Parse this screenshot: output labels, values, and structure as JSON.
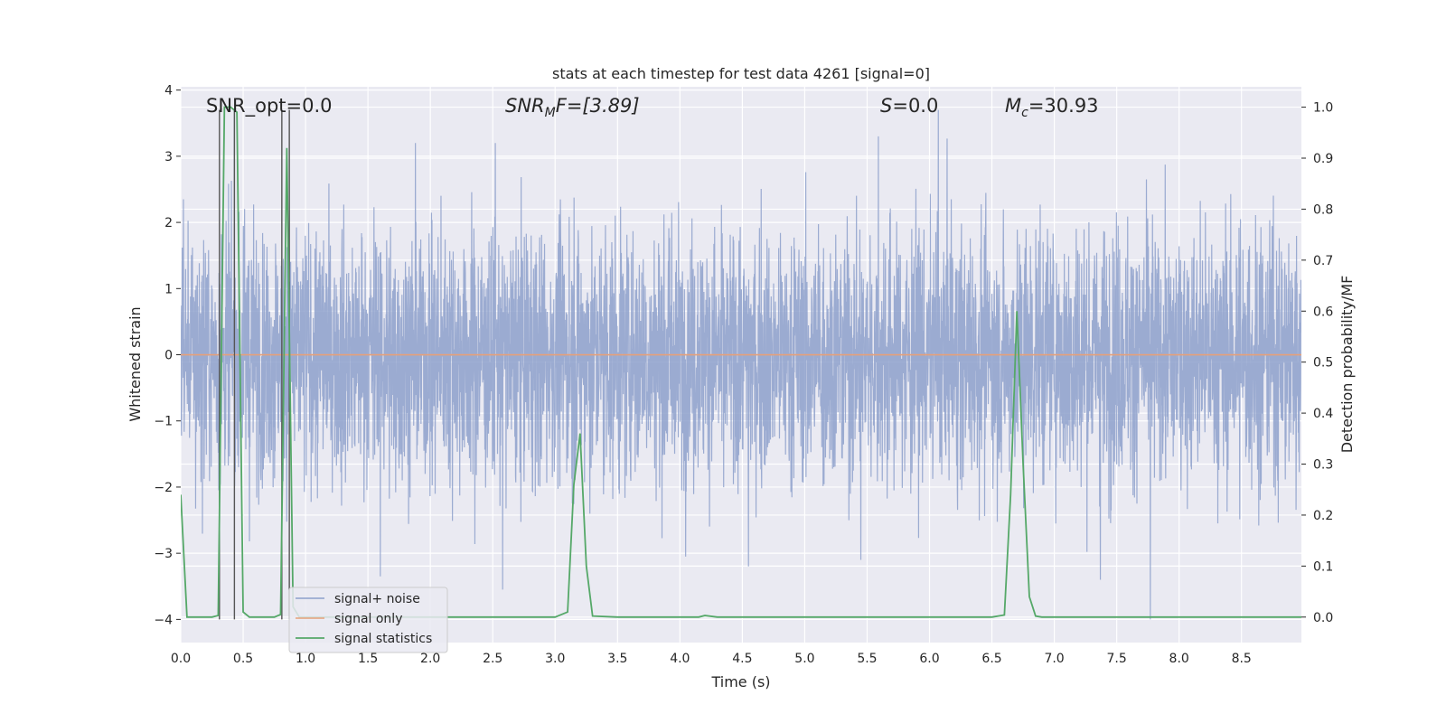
{
  "chart_data": {
    "type": "line",
    "title": "stats at each timestep for test data 4261 [signal=0]",
    "xlabel": "Time (s)",
    "ylabel": "Whitened strain",
    "y2label": "Detection probability/MF",
    "xlim": [
      0.0,
      8.98
    ],
    "ylim": [
      -4.35,
      4.05
    ],
    "y2lim": [
      -0.05,
      1.04
    ],
    "xticks": [
      0.0,
      0.5,
      1.0,
      1.5,
      2.0,
      2.5,
      3.0,
      3.5,
      4.0,
      4.5,
      5.0,
      5.5,
      6.0,
      6.5,
      7.0,
      7.5,
      8.0,
      8.5
    ],
    "yticks": [
      -4,
      -3,
      -2,
      -1,
      0,
      1,
      2,
      3,
      4
    ],
    "y2ticks": [
      0.0,
      0.1,
      0.2,
      0.3,
      0.4,
      0.5,
      0.6,
      0.7,
      0.8,
      0.9,
      1.0
    ],
    "grid": true,
    "annotations": {
      "snr_opt": "SNR_opt=0.0",
      "snr_mf_main": "SNR",
      "snr_mf_sub": "M",
      "snr_mf_rest": "F=[3.89]",
      "s_sym": "S",
      "s_rest": "=0.0",
      "mc_sym": "M",
      "mc_sub": "c",
      "mc_rest": "=30.93"
    },
    "legend": {
      "placement": "lower-left",
      "entries": [
        "signal+ noise",
        "signal only",
        "signal statistics"
      ]
    },
    "series": [
      {
        "name": "signal+ noise",
        "color": "#8da0cb",
        "description_values": "whitened noise approximately Gaussian, std ~1, peaks near +3.7 and -4",
        "peaks": [
          {
            "x": 0.43,
            "y": 3.7
          },
          {
            "x": 2.52,
            "y": 3.2
          },
          {
            "x": 1.88,
            "y": 3.2
          },
          {
            "x": 5.59,
            "y": 3.3
          },
          {
            "x": 6.07,
            "y": 3.7
          },
          {
            "x": 2.58,
            "y": -3.55
          },
          {
            "x": 1.6,
            "y": -3.35
          },
          {
            "x": 7.77,
            "y": -4.0
          },
          {
            "x": 7.37,
            "y": -3.4
          },
          {
            "x": 4.55,
            "y": -3.2
          },
          {
            "x": 5.45,
            "y": -3.1
          }
        ]
      },
      {
        "name": "signal only",
        "color": "#e5a07a",
        "x": [
          0.0,
          8.98
        ],
        "y": [
          0.0,
          0.0
        ]
      },
      {
        "name": "signal statistics",
        "color": "#55a868",
        "axis": "right",
        "x": [
          0.0,
          0.05,
          0.1,
          0.15,
          0.2,
          0.25,
          0.3,
          0.35,
          0.4,
          0.45,
          0.5,
          0.55,
          0.6,
          0.65,
          0.7,
          0.75,
          0.8,
          0.85,
          0.9,
          0.95,
          1.0,
          1.05,
          1.1,
          1.5,
          2.0,
          2.5,
          3.0,
          3.1,
          3.15,
          3.2,
          3.25,
          3.3,
          3.5,
          4.0,
          4.15,
          4.2,
          4.3,
          4.5,
          5.0,
          5.5,
          6.0,
          6.5,
          6.6,
          6.65,
          6.7,
          6.75,
          6.8,
          6.85,
          6.9,
          7.0,
          7.5,
          8.0,
          8.5,
          8.98
        ],
        "y": [
          0.24,
          0.0,
          0.0,
          0.0,
          0.0,
          0.0,
          0.003,
          1.0,
          1.0,
          0.99,
          0.01,
          0.0,
          0.0,
          0.0,
          0.0,
          0.0,
          0.005,
          0.92,
          0.02,
          0.0,
          0.0,
          0.0,
          0.0,
          0.0,
          0.0,
          0.0,
          0.0,
          0.01,
          0.26,
          0.36,
          0.1,
          0.002,
          0.0,
          0.0,
          0.0,
          0.003,
          0.0,
          0.0,
          0.0,
          0.0,
          0.0,
          0.0,
          0.004,
          0.24,
          0.6,
          0.3,
          0.04,
          0.002,
          0.0,
          0.0,
          0.0,
          0.0,
          0.0,
          0.0
        ]
      }
    ],
    "vertical_markers": {
      "color": "#555555",
      "x": [
        0.31,
        0.43,
        0.81,
        0.87
      ]
    }
  }
}
